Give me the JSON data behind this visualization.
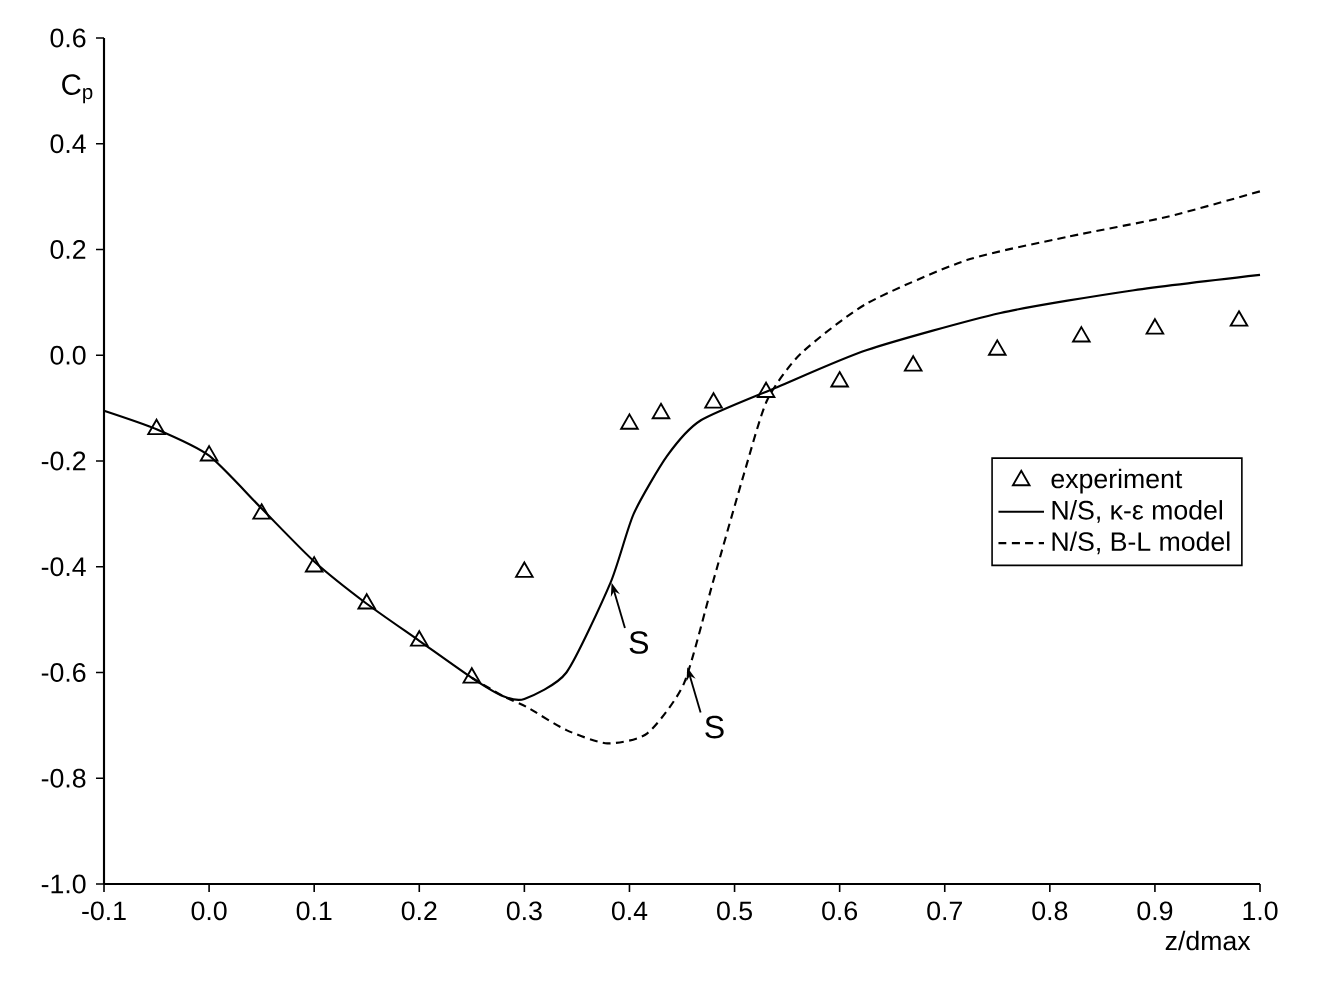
{
  "chart_data": {
    "type": "line",
    "xlabel": "z/dmax",
    "ylabel": "C$_{p}$",
    "xlim": [
      -0.1,
      1.0
    ],
    "ylim": [
      -1.0,
      0.6
    ],
    "xticks": [
      {
        "value": -0.1,
        "label": "-0.1"
      },
      {
        "value": 0.0,
        "label": "0.0"
      },
      {
        "value": 0.1,
        "label": "0.1"
      },
      {
        "value": 0.2,
        "label": "0.2"
      },
      {
        "value": 0.3,
        "label": "0.3"
      },
      {
        "value": 0.4,
        "label": "0.4"
      },
      {
        "value": 0.5,
        "label": "0.5"
      },
      {
        "value": 0.6,
        "label": "0.6"
      },
      {
        "value": 0.7,
        "label": "0.7"
      },
      {
        "value": 0.8,
        "label": "0.8"
      },
      {
        "value": 0.9,
        "label": "0.9"
      },
      {
        "value": 1.0,
        "label": "1.0"
      }
    ],
    "yticks": [
      {
        "value": -1.0,
        "label": "-1.0"
      },
      {
        "value": -0.8,
        "label": "-0.8"
      },
      {
        "value": -0.6,
        "label": "-0.6"
      },
      {
        "value": -0.4,
        "label": "-0.4"
      },
      {
        "value": -0.2,
        "label": "-0.2"
      },
      {
        "value": 0.0,
        "label": "0.0"
      },
      {
        "value": 0.2,
        "label": "0.2"
      },
      {
        "value": 0.4,
        "label": "0.4"
      },
      {
        "value": 0.6,
        "label": "0.6"
      }
    ],
    "grid": false,
    "legend": "right",
    "series": [
      {
        "name": "experiment",
        "type": "scatter",
        "marker": "triangle",
        "color": "#000000",
        "x": [
          -0.05,
          0.0,
          0.05,
          0.1,
          0.15,
          0.2,
          0.25,
          0.3,
          0.4,
          0.43,
          0.48,
          0.53,
          0.6,
          0.67,
          0.75,
          0.83,
          0.9,
          0.98
        ],
        "values": [
          -0.14,
          -0.19,
          -0.3,
          -0.4,
          -0.47,
          -0.54,
          -0.61,
          -0.41,
          -0.13,
          -0.11,
          -0.09,
          -0.07,
          -0.05,
          -0.02,
          0.01,
          0.035,
          0.05,
          0.065
        ]
      },
      {
        "name": "N/S, κ-ε model",
        "type": "line",
        "line_style": "solid",
        "color": "#000000",
        "x": [
          -0.1,
          -0.05,
          0.0,
          0.05,
          0.1,
          0.15,
          0.2,
          0.25,
          0.28,
          0.3,
          0.34,
          0.382,
          0.404,
          0.436,
          0.468,
          0.541,
          0.626,
          0.753,
          0.88,
          1.0
        ],
        "values": [
          -0.105,
          -0.14,
          -0.19,
          -0.29,
          -0.39,
          -0.47,
          -0.54,
          -0.61,
          -0.645,
          -0.65,
          -0.6,
          -0.43,
          -0.3,
          -0.19,
          -0.123,
          -0.06,
          0.01,
          0.08,
          0.123,
          0.152
        ]
      },
      {
        "name": "N/S, B-L model",
        "type": "line",
        "line_style": "dashed",
        "color": "#000000",
        "x": [
          0.25,
          0.28,
          0.302,
          0.34,
          0.379,
          0.417,
          0.452,
          0.48,
          0.509,
          0.531,
          0.563,
          0.626,
          0.721,
          0.817,
          0.912,
          1.0
        ],
        "values": [
          -0.61,
          -0.645,
          -0.665,
          -0.709,
          -0.734,
          -0.715,
          -0.62,
          -0.425,
          -0.224,
          -0.085,
          0.003,
          0.098,
          0.18,
          0.224,
          0.262,
          0.31
        ]
      }
    ],
    "annotations": [
      {
        "text": "S",
        "x": 0.383,
        "y": -0.43
      },
      {
        "text": "S",
        "x": 0.455,
        "y": -0.59
      }
    ]
  }
}
